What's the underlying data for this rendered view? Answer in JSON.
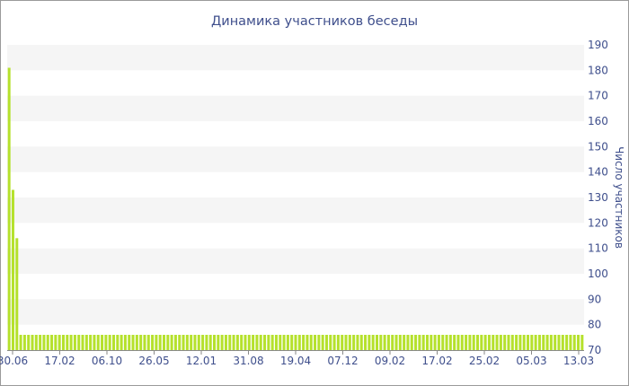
{
  "chart_data": {
    "type": "bar",
    "title": "Динамика участников беседы",
    "ylabel": "Число участников",
    "xlabel": "",
    "ylim": [
      70,
      190
    ],
    "y_ticks": [
      70,
      80,
      90,
      100,
      110,
      120,
      130,
      140,
      150,
      160,
      170,
      180,
      190
    ],
    "x_tick_labels": [
      "30.06",
      "17.02",
      "06.10",
      "26.05",
      "12.01",
      "31.08",
      "19.04",
      "07.12",
      "09.02",
      "17.02",
      "25.02",
      "05.03",
      "13.03"
    ],
    "bar_color": "#b5e12c",
    "band_color": "#f5f5f5",
    "grid": "alternating-bands",
    "y_axis_side": "right",
    "values": [
      181,
      133,
      114,
      76,
      76,
      76,
      76,
      76,
      76,
      76,
      76,
      76,
      76,
      76,
      76,
      76,
      76,
      76,
      76,
      76,
      76,
      76,
      76,
      76,
      76,
      76,
      76,
      76,
      76,
      76,
      76,
      76,
      76,
      76,
      76,
      76,
      76,
      76,
      76,
      76,
      76,
      76,
      76,
      76,
      76,
      76,
      76,
      76,
      76,
      76,
      76,
      76,
      76,
      76,
      76,
      76,
      76,
      76,
      76,
      76,
      76,
      76,
      76,
      76,
      76,
      76,
      76,
      76,
      76,
      76,
      76,
      76,
      76,
      76,
      76,
      76,
      76,
      76,
      76,
      76,
      76,
      76,
      76,
      76,
      76,
      76,
      76,
      76,
      76,
      76,
      76,
      76,
      76,
      76,
      76,
      76,
      76,
      76,
      76,
      76,
      76,
      76,
      76,
      76,
      76,
      76,
      76,
      76,
      76,
      76,
      76,
      76,
      76,
      76,
      76,
      76,
      76,
      76,
      76,
      76,
      76,
      76,
      76,
      76,
      76,
      76,
      76,
      76,
      76,
      76,
      76,
      76,
      76,
      76,
      76,
      76,
      76,
      76,
      76,
      76,
      76,
      76,
      76,
      76,
      76,
      76,
      76,
      76,
      76
    ]
  }
}
